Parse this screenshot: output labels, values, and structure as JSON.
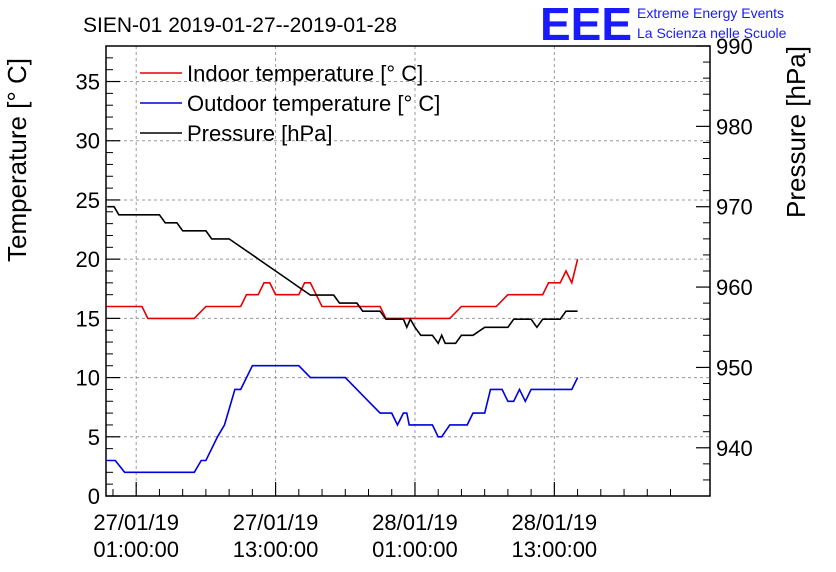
{
  "chart_data": {
    "type": "line",
    "title": "SIEN-01 2019-01-27--2019-01-28",
    "ylabel": "Temperature [° C]",
    "y2label": "Pressure [hPa]",
    "ylim": [
      0,
      38
    ],
    "y2lim": [
      934,
      990
    ],
    "x_unit": "hours since 2019-01-27 00:00",
    "xlim": [
      -1.6,
      50.4
    ],
    "yticks": [
      "0",
      "5",
      "10",
      "15",
      "20",
      "25",
      "30",
      "35"
    ],
    "y2ticks": [
      "940",
      "950",
      "960",
      "970",
      "980",
      "990"
    ],
    "xticks": [
      {
        "x": 1,
        "date": "27/01/19",
        "time": "01:00:00"
      },
      {
        "x": 13,
        "date": "27/01/19",
        "time": "13:00:00"
      },
      {
        "x": 25,
        "date": "28/01/19",
        "time": "01:00:00"
      },
      {
        "x": 37,
        "date": "28/01/19",
        "time": "13:00:00"
      }
    ],
    "series": [
      {
        "name": "Indoor temperature [° C]",
        "color": "#e80000",
        "axis": "left",
        "points": [
          [
            -1.5,
            16
          ],
          [
            1.5,
            16
          ],
          [
            2,
            15
          ],
          [
            6,
            15
          ],
          [
            7,
            16
          ],
          [
            10,
            16
          ],
          [
            10.5,
            17
          ],
          [
            11.5,
            17
          ],
          [
            12,
            18
          ],
          [
            12.5,
            18
          ],
          [
            13,
            17
          ],
          [
            15,
            17
          ],
          [
            15.5,
            18
          ],
          [
            16,
            18
          ],
          [
            16.5,
            17
          ],
          [
            17,
            16
          ],
          [
            22,
            16
          ],
          [
            22.5,
            15
          ],
          [
            28,
            15
          ],
          [
            29,
            16
          ],
          [
            32,
            16
          ],
          [
            33,
            17
          ],
          [
            35,
            17
          ],
          [
            36,
            17
          ],
          [
            36.5,
            18
          ],
          [
            37.5,
            18
          ],
          [
            38,
            19
          ],
          [
            38.5,
            18
          ],
          [
            39,
            20
          ]
        ]
      },
      {
        "name": "Outdoor temperature [° C]",
        "color": "#0000e0",
        "axis": "left",
        "points": [
          [
            -1.5,
            3
          ],
          [
            -0.8,
            3
          ],
          [
            0,
            2
          ],
          [
            6,
            2
          ],
          [
            6.6,
            3
          ],
          [
            7,
            3
          ],
          [
            8,
            5
          ],
          [
            8.6,
            6
          ],
          [
            9.5,
            9
          ],
          [
            10,
            9
          ],
          [
            11,
            11
          ],
          [
            15,
            11
          ],
          [
            16,
            10
          ],
          [
            19,
            10
          ],
          [
            20,
            9
          ],
          [
            21,
            8
          ],
          [
            22,
            7
          ],
          [
            23,
            7
          ],
          [
            23.5,
            6
          ],
          [
            24,
            7
          ],
          [
            24.3,
            7
          ],
          [
            24.5,
            6
          ],
          [
            26.5,
            6
          ],
          [
            27,
            5
          ],
          [
            27.3,
            5
          ],
          [
            28,
            6
          ],
          [
            29.5,
            6
          ],
          [
            30,
            7
          ],
          [
            31,
            7
          ],
          [
            31.5,
            9
          ],
          [
            32.5,
            9
          ],
          [
            33,
            8
          ],
          [
            33.5,
            8
          ],
          [
            34,
            9
          ],
          [
            34.5,
            8
          ],
          [
            35,
            9
          ],
          [
            37.5,
            9
          ],
          [
            38,
            9
          ],
          [
            38.5,
            9
          ],
          [
            39,
            10
          ]
        ]
      },
      {
        "name": "Pressure [hPa]",
        "color": "#000000",
        "axis": "right",
        "points": [
          [
            -1.5,
            970
          ],
          [
            -0.9,
            970
          ],
          [
            -0.5,
            969
          ],
          [
            3,
            969
          ],
          [
            3.5,
            968
          ],
          [
            4.5,
            968
          ],
          [
            5,
            967
          ],
          [
            7,
            967
          ],
          [
            7.5,
            966
          ],
          [
            8.5,
            966
          ],
          [
            9,
            966
          ],
          [
            10,
            965
          ],
          [
            11,
            964
          ],
          [
            12,
            963
          ],
          [
            13,
            962
          ],
          [
            14,
            961
          ],
          [
            15,
            960
          ],
          [
            16,
            959
          ],
          [
            18,
            959
          ],
          [
            18.5,
            958
          ],
          [
            20,
            958
          ],
          [
            20.5,
            957
          ],
          [
            22,
            957
          ],
          [
            22.5,
            956
          ],
          [
            24,
            956
          ],
          [
            24.3,
            955
          ],
          [
            24.6,
            956
          ],
          [
            25,
            955
          ],
          [
            25.5,
            954
          ],
          [
            26.5,
            954
          ],
          [
            27,
            953
          ],
          [
            27.3,
            954
          ],
          [
            27.6,
            953
          ],
          [
            28.5,
            953
          ],
          [
            29,
            954
          ],
          [
            30,
            954
          ],
          [
            31,
            955
          ],
          [
            33,
            955
          ],
          [
            33.5,
            956
          ],
          [
            35,
            956
          ],
          [
            35.5,
            955
          ],
          [
            36,
            956
          ],
          [
            37,
            956
          ],
          [
            37.5,
            956
          ],
          [
            38,
            957
          ],
          [
            39,
            957
          ]
        ]
      }
    ]
  },
  "legend": [
    {
      "label": "Indoor temperature [° C]",
      "color": "#e80000"
    },
    {
      "label": "Outdoor temperature [° C]",
      "color": "#0000e0"
    },
    {
      "label": "Pressure [hPa]",
      "color": "#000000"
    }
  ],
  "branding": {
    "logo": "EEE",
    "line1": "Extreme Energy Events",
    "line2": "La Scienza nelle Scuole",
    "color": "#1a1aff"
  }
}
